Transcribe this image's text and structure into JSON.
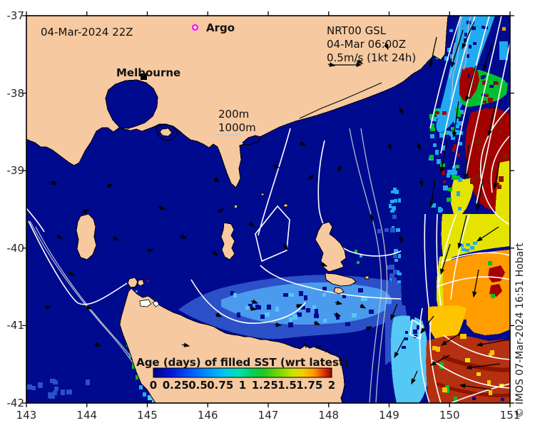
{
  "header": {
    "date_label": "04-Mar-2024 22Z"
  },
  "labels": {
    "argo": "Argo",
    "melbourne": "Melbourne",
    "depth_200": "200m",
    "depth_1000": "1000m"
  },
  "gsl_info": {
    "line1": "NRT00 GSL",
    "line2": "04-Mar 06:00Z",
    "line3": "0.5m/s (1kt 24h)"
  },
  "legend": {
    "title": "Age (days) of filled SST (wrt latest)",
    "ticks": [
      "0",
      "0.25",
      "0.5",
      "0.75",
      "1",
      "1.25",
      "1.5",
      "1.75",
      "2"
    ]
  },
  "axes": {
    "x_ticks": [
      "143",
      "144",
      "145",
      "146",
      "147",
      "148",
      "149",
      "150",
      "151"
    ],
    "y_ticks": [
      "-37",
      "-38",
      "-39",
      "-40",
      "-41",
      "-42"
    ]
  },
  "copyright": "© IMOS 07-Mar-2024 16:51 Hobart",
  "palette": {
    "land": "#F6C9A0",
    "ocean": "#000A8F",
    "royal": "#2B50C8",
    "blue_light": "#4A9AEE",
    "cyan": "#22AAF0",
    "cyan_light": "#55C8F5",
    "green": "#00BE32",
    "yellow": "#E4E400",
    "gold": "#FFC400",
    "orange": "#FF9C00",
    "brick": "#B53010",
    "red_dark": "#A30000",
    "maroon": "#8C1400",
    "contour_gray": "#AEBBCB",
    "contour_white": "#FFFFFF",
    "magenta": "#FF00FF",
    "coast": "#000000"
  },
  "chart_data": {
    "type": "heatmap",
    "title": "Age (days) of filled SST (wrt latest)",
    "colorbar_range": [
      0,
      2
    ],
    "colorbar_ticks": [
      0,
      0.25,
      0.5,
      0.75,
      1,
      1.25,
      1.5,
      1.75,
      2
    ],
    "x_axis": {
      "range": [
        143,
        151
      ],
      "ticks": [
        143,
        144,
        145,
        146,
        147,
        148,
        149,
        150,
        151
      ]
    },
    "y_axis": {
      "range": [
        -42,
        -37
      ],
      "ticks": [
        -37,
        -38,
        -39,
        -40,
        -41,
        -42
      ]
    },
    "annotations": [
      "04-Mar-2024 22Z",
      "Argo",
      "Melbourne",
      "NRT00 GSL",
      "04-Mar 06:00Z",
      "0.5m/s (1kt 24h)",
      "200m",
      "1000m"
    ],
    "legend_position": "bottom-center-inside",
    "grid": false
  }
}
